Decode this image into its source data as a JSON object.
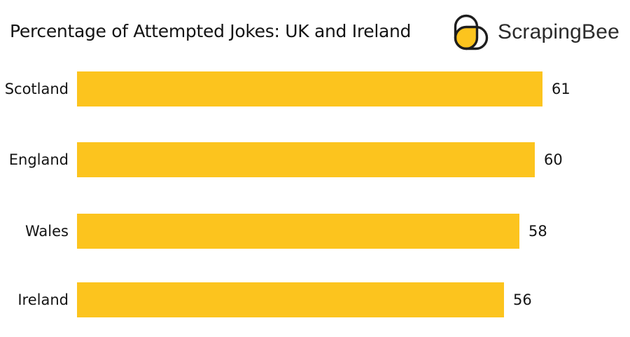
{
  "header": {
    "logo": {
      "brand": "ScrapingBee",
      "icon_fill_color": "#FCC41E",
      "icon_outline_color": "#1e1e1e",
      "text_color": "#2b2b2b"
    }
  },
  "chart_data": {
    "type": "bar",
    "orientation": "horizontal",
    "title": "Percentage of Attempted Jokes: UK and Ireland",
    "categories": [
      "Scotland",
      "England",
      "Wales",
      "Ireland"
    ],
    "values": [
      61,
      60,
      58,
      56
    ],
    "value_labels": [
      "61",
      "60",
      "58",
      "56"
    ],
    "xlabel": "",
    "ylabel": "",
    "xlim": [
      0,
      72.5
    ],
    "grid": false,
    "legend": null,
    "axes_visible": false,
    "bar_color": "#FCC41E",
    "label_color": "#141414",
    "value_label_position": "right-of-bar"
  }
}
